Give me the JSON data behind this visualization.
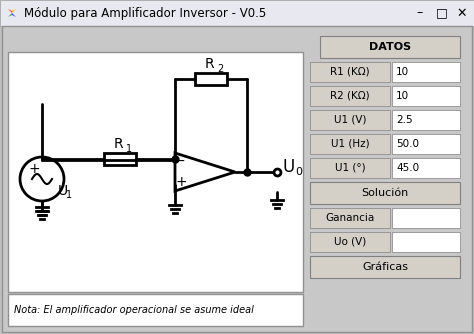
{
  "title": "Módulo para Amplificador Inversor - V0.5",
  "bg_color": "#c0c0c0",
  "window_bg": "#c8c8c8",
  "circuit_bg": "#ffffff",
  "panel_bg": "#c8c8c8",
  "title_bar_color": "#e8e8e8",
  "note_text": "Nota: El amplificador operacional se asume ideal",
  "datos_label": "DATOS",
  "solucion_label": "Solución",
  "graficas_label": "Gráficas",
  "ganancia_label": "Ganancia",
  "uo_label": "Uo (V)",
  "fields": [
    {
      "label": "R1 (KΩ)",
      "value": "10"
    },
    {
      "label": "R2 (KΩ)",
      "value": "10"
    },
    {
      "label": "U1 (V)",
      "value": "2.5"
    },
    {
      "label": "U1 (Hz)",
      "value": "50.0"
    },
    {
      "label": "U1 (°)",
      "value": "45.0"
    }
  ],
  "button_color": "#d4d0c8",
  "entry_bg": "#ffffff",
  "border_color": "#808080",
  "text_color": "#000000",
  "circuit_line_color": "#000000",
  "circuit_lw": 2.0
}
